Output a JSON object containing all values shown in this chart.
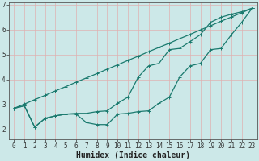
{
  "xlabel": "Humidex (Indice chaleur)",
  "bg_color": "#cce8e8",
  "line_color": "#1a7a6e",
  "grid_color": "#e0b0b0",
  "xlim": [
    -0.5,
    23.5
  ],
  "ylim": [
    1.6,
    7.1
  ],
  "yticks": [
    2,
    3,
    4,
    5,
    6,
    7
  ],
  "xticks": [
    0,
    1,
    2,
    3,
    4,
    5,
    6,
    7,
    8,
    9,
    10,
    11,
    12,
    13,
    14,
    15,
    16,
    17,
    18,
    19,
    20,
    21,
    22,
    23
  ],
  "line_straight_y": [
    2.85,
    3.02,
    3.2,
    3.37,
    3.55,
    3.72,
    3.9,
    4.07,
    4.24,
    4.42,
    4.59,
    4.77,
    4.94,
    5.12,
    5.29,
    5.46,
    5.64,
    5.81,
    5.99,
    6.16,
    6.34,
    6.51,
    6.68,
    6.86
  ],
  "line_wavy_y": [
    2.85,
    2.95,
    2.1,
    2.45,
    2.55,
    2.62,
    2.62,
    2.28,
    2.2,
    2.2,
    2.62,
    2.65,
    2.72,
    2.75,
    3.05,
    3.3,
    4.1,
    4.55,
    4.65,
    5.2,
    5.25,
    5.8,
    6.3,
    6.86
  ],
  "line_curved_y": [
    2.85,
    2.95,
    2.1,
    2.45,
    2.55,
    2.62,
    2.65,
    2.65,
    2.72,
    2.75,
    3.05,
    3.3,
    4.1,
    4.55,
    4.65,
    5.2,
    5.25,
    5.52,
    5.8,
    6.3,
    6.5,
    6.62,
    6.72,
    6.86
  ],
  "marker_size": 2.5,
  "linewidth": 0.9,
  "xlabel_fontsize": 7,
  "tick_fontsize": 5.5
}
